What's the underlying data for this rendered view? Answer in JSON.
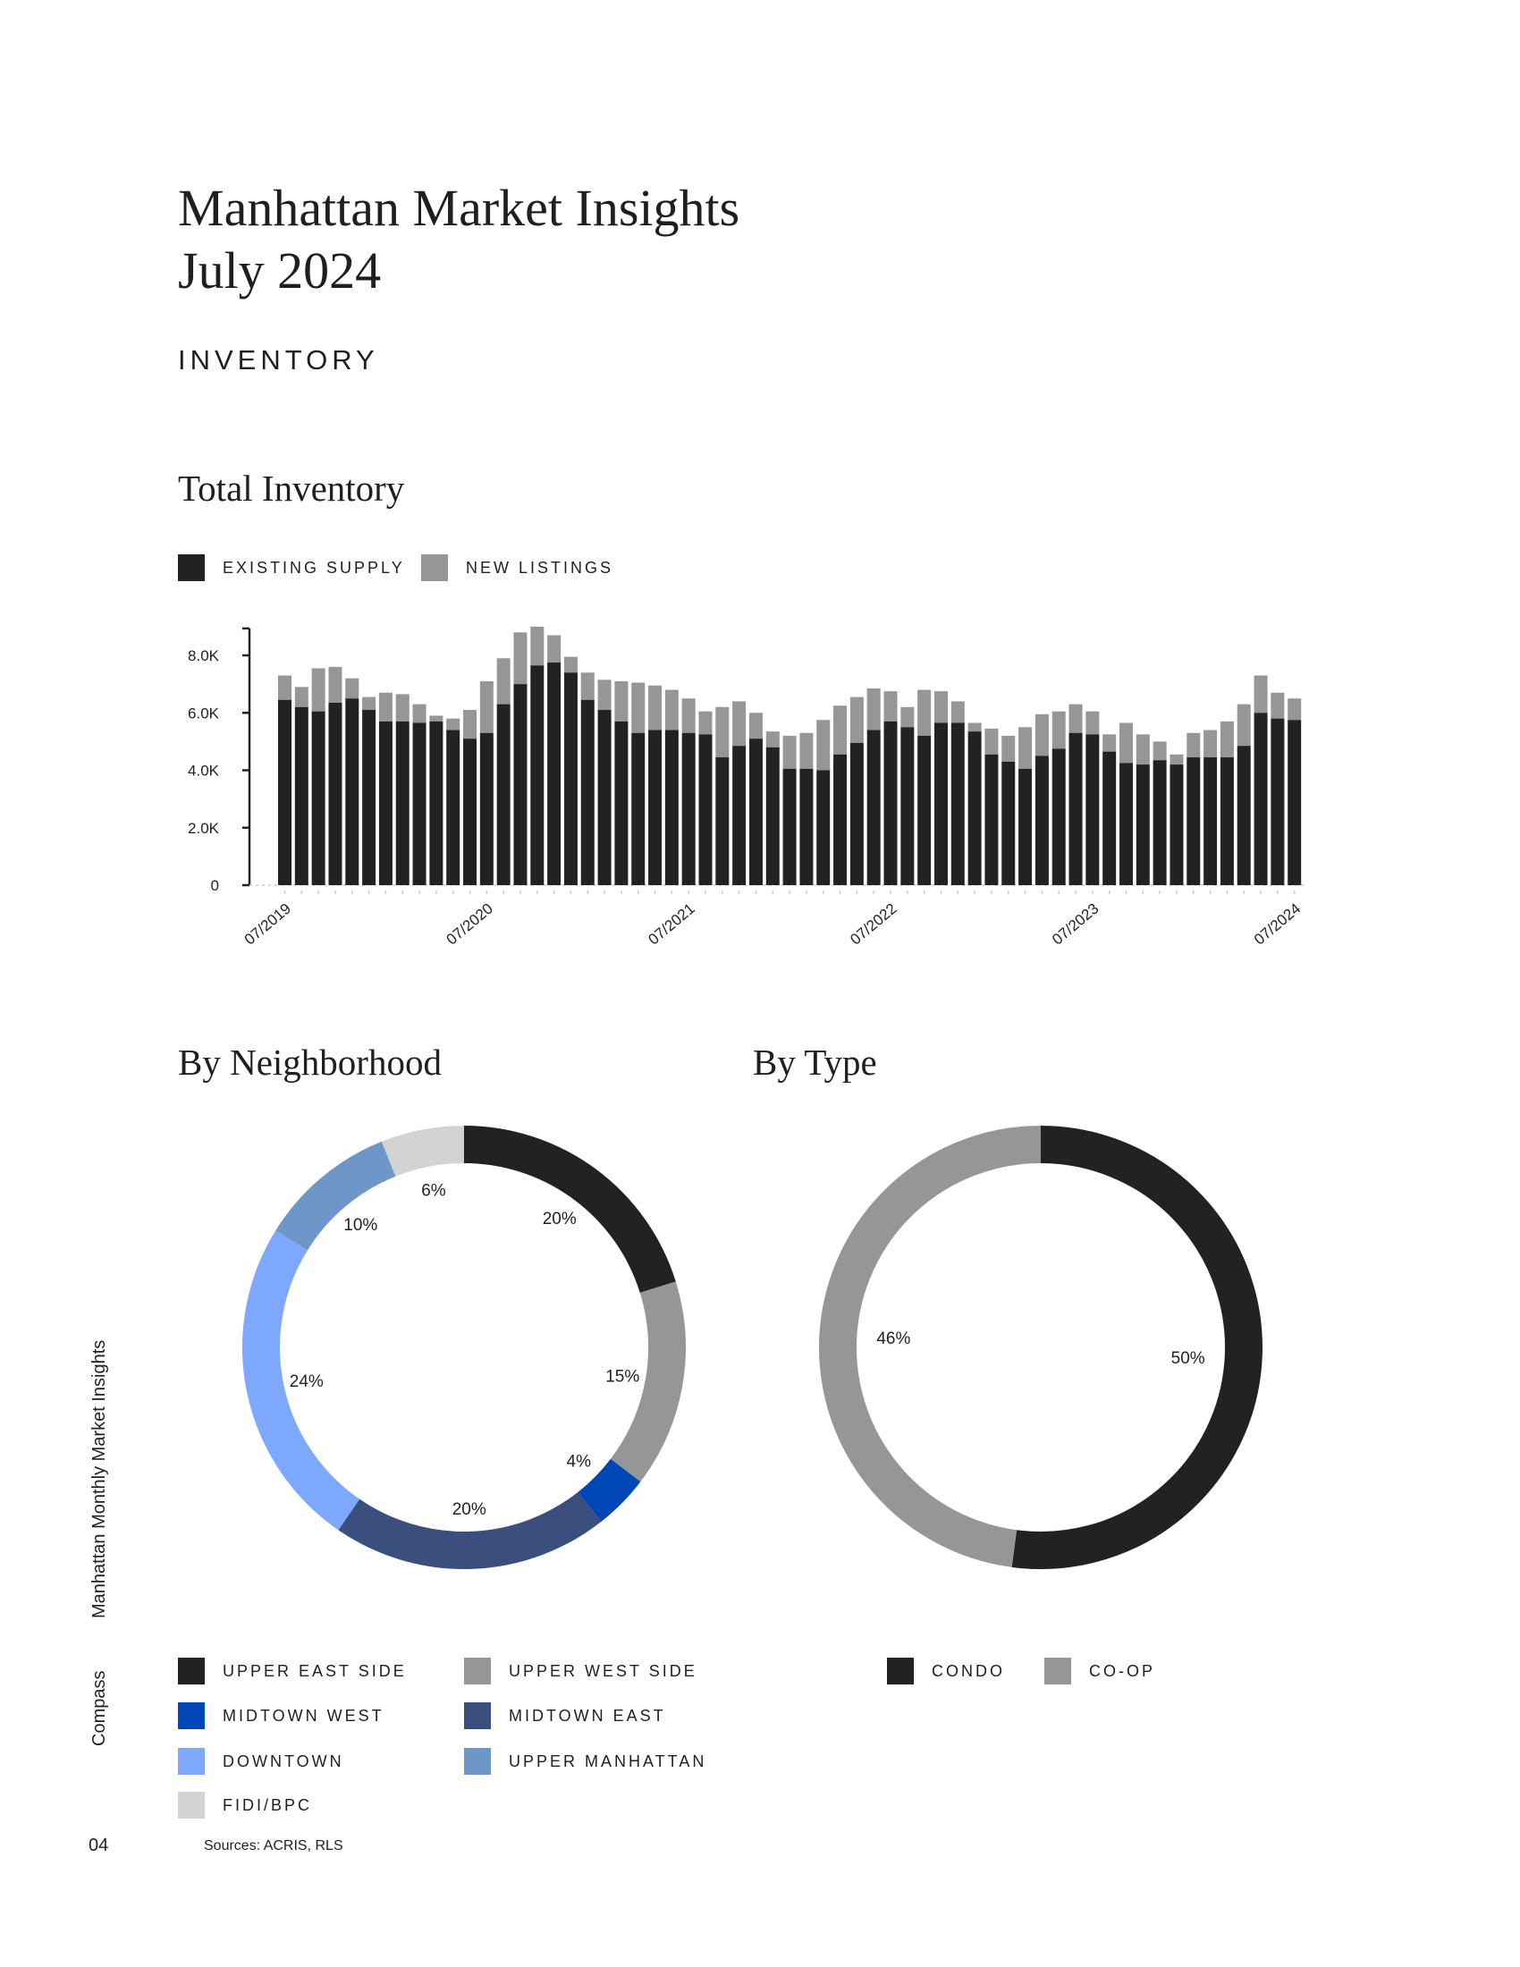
{
  "header": {
    "title_line1": "Manhattan Market Insights",
    "title_line2": "July 2024",
    "section": "INVENTORY"
  },
  "total_inventory": {
    "heading": "Total Inventory"
  },
  "by_neighborhood": {
    "heading": "By Neighborhood"
  },
  "by_type": {
    "heading": "By Type"
  },
  "side": {
    "publication": "Manhattan Monthly Market Insights",
    "brand": "Compass"
  },
  "footer": {
    "page_number": "04",
    "sources": "Sources: ACRIS, RLS"
  },
  "chart_data": [
    {
      "type": "bar",
      "stacked": true,
      "title": "Total Inventory",
      "legend": [
        {
          "name": "EXISTING SUPPLY",
          "color": "#222222"
        },
        {
          "name": "NEW LISTINGS",
          "color": "#969696"
        }
      ],
      "legend_placement": "top-left",
      "ylim": [
        0,
        9000
      ],
      "yticks": [
        0,
        2000,
        4000,
        6000,
        8000
      ],
      "ytick_labels": [
        "0",
        "2.0K",
        "4.0K",
        "6.0K",
        "8.0K"
      ],
      "xtick_labels": [
        "07/2019",
        "07/2020",
        "07/2021",
        "07/2022",
        "07/2023",
        "07/2024"
      ],
      "xtick_index": [
        0,
        12,
        24,
        36,
        48,
        60
      ],
      "series": [
        {
          "name": "EXISTING SUPPLY",
          "values": [
            6450,
            6200,
            6050,
            6350,
            6500,
            6100,
            5700,
            5700,
            5650,
            5700,
            5400,
            5100,
            5300,
            6300,
            7000,
            7650,
            7750,
            7400,
            6450,
            6100,
            5700,
            5300,
            5400,
            5400,
            5300,
            5250,
            4450,
            4850,
            5100,
            4800,
            4050,
            4050,
            4000,
            4550,
            4950,
            5400,
            5700,
            5500,
            5200,
            5650,
            5650,
            5350,
            4550,
            4300,
            4050,
            4500,
            4750,
            5300,
            5250,
            4650,
            4250,
            4200,
            4350,
            4200,
            4450,
            4450,
            4450,
            4850,
            6000,
            5800,
            5750
          ]
        },
        {
          "name": "NEW LISTINGS",
          "values": [
            850,
            700,
            1500,
            1250,
            700,
            450,
            1000,
            950,
            650,
            200,
            400,
            1000,
            1800,
            1600,
            1800,
            1350,
            950,
            550,
            950,
            1050,
            1400,
            1750,
            1550,
            1400,
            1200,
            800,
            1750,
            1550,
            900,
            550,
            1150,
            1250,
            1750,
            1700,
            1600,
            1450,
            1050,
            700,
            1600,
            1100,
            750,
            300,
            900,
            900,
            1450,
            1450,
            1300,
            1000,
            800,
            600,
            1400,
            1050,
            650,
            350,
            850,
            950,
            1250,
            1450,
            1300,
            900,
            750
          ]
        }
      ]
    },
    {
      "type": "pie",
      "style": "donut",
      "title": "By Neighborhood",
      "labels": [
        "UPPER EAST SIDE",
        "UPPER WEST SIDE",
        "MIDTOWN WEST",
        "MIDTOWN EAST",
        "DOWNTOWN",
        "UPPER MANHATTAN",
        "FIDI/BPC"
      ],
      "values": [
        20,
        15,
        4,
        20,
        24,
        10,
        6
      ],
      "value_labels": [
        "20%",
        "15%",
        "4%",
        "20%",
        "24%",
        "10%",
        "6%"
      ],
      "colors": [
        "#222222",
        "#969696",
        "#0047b5",
        "#3a4f7e",
        "#7ea8fd",
        "#6e96c7",
        "#d3d3d3"
      ]
    },
    {
      "type": "pie",
      "style": "donut",
      "title": "By Type",
      "labels": [
        "CONDO",
        "CO-OP"
      ],
      "values": [
        50,
        46
      ],
      "value_labels": [
        "50%",
        "46%"
      ],
      "colors": [
        "#222222",
        "#969696"
      ]
    }
  ]
}
